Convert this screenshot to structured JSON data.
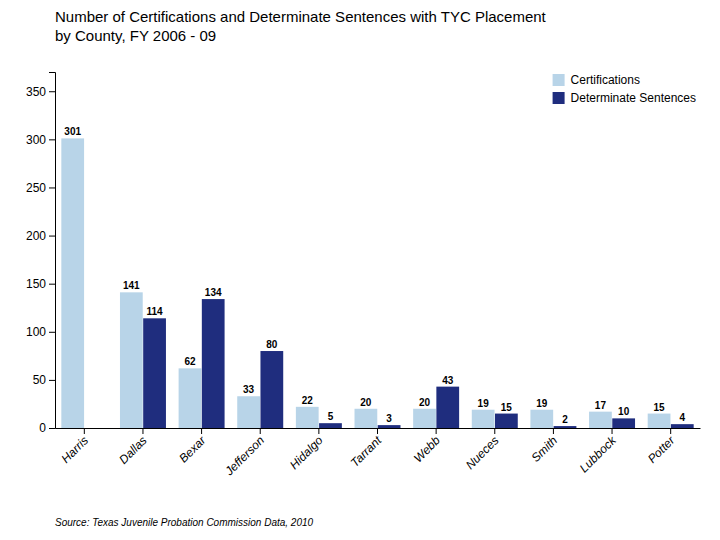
{
  "chart_data": {
    "type": "bar",
    "title": "Number of Certifications and Determinate Sentences with TYC Placement\nby County, FY 2006 - 09",
    "categories": [
      "Harris",
      "Dallas",
      "Bexar",
      "Jefferson",
      "Hidalgo",
      "Tarrant",
      "Webb",
      "Nueces",
      "Smith",
      "Lubbock",
      "Potter"
    ],
    "series": [
      {
        "name": "Certifications",
        "color": "#b8d4e8",
        "values": [
          301,
          141,
          62,
          33,
          22,
          20,
          20,
          19,
          19,
          17,
          15
        ]
      },
      {
        "name": "Determinate Sentences",
        "color": "#1f2d7e",
        "values": [
          0,
          114,
          134,
          80,
          5,
          3,
          43,
          15,
          2,
          10,
          4
        ],
        "value_labels": [
          null,
          "114",
          "134",
          "80",
          "5",
          "3",
          "43",
          "15",
          "2",
          "10",
          "4"
        ]
      }
    ],
    "ylim": [
      0,
      370
    ],
    "yticks": [
      0,
      50,
      100,
      150,
      200,
      250,
      300,
      350
    ],
    "grid": false,
    "legend": "upper right",
    "data_labels": true,
    "source": "Source: Texas Juvenile Probation Commission Data, 2010"
  }
}
